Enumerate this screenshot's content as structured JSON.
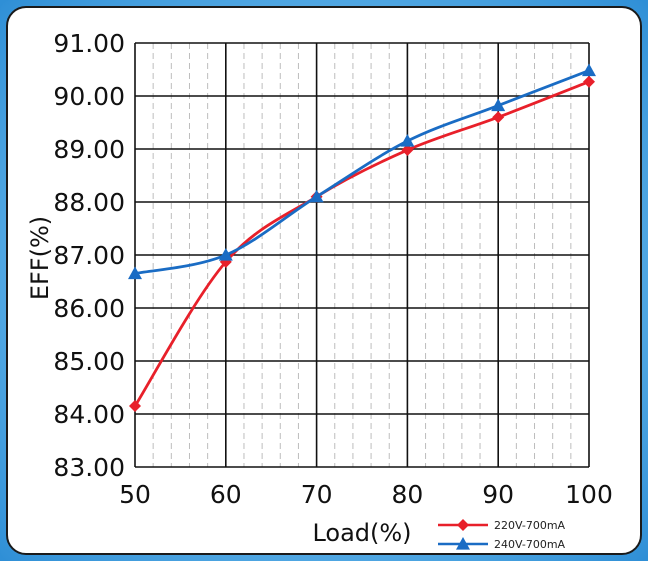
{
  "chart_data": {
    "type": "line",
    "title": "",
    "xlabel": "Load(%)",
    "ylabel": "EFF(%)",
    "x": [
      50,
      60,
      70,
      80,
      90,
      100
    ],
    "x_tick_labels": [
      "50",
      "60",
      "70",
      "80",
      "90",
      "100"
    ],
    "xlim": [
      50,
      100
    ],
    "y_tick_labels": [
      "91.00",
      "90.00",
      "89.00",
      "88.00",
      "87.00",
      "86.00",
      "85.00",
      "84.00",
      "83.00"
    ],
    "y_tick_values": [
      91,
      90,
      89,
      88,
      87,
      86,
      85,
      84,
      83
    ],
    "ylim": [
      83,
      91
    ],
    "grid": true,
    "legend_position": "bottom-right",
    "series": [
      {
        "name": "220V-700mA",
        "color": "#e8202a",
        "marker": "diamond",
        "values": [
          84.15,
          86.87,
          88.1,
          88.98,
          89.6,
          90.27
        ]
      },
      {
        "name": "240V-700mA",
        "color": "#1a6cc4",
        "marker": "triangle",
        "values": [
          86.65,
          87.0,
          88.1,
          89.15,
          89.82,
          90.48
        ]
      }
    ]
  }
}
